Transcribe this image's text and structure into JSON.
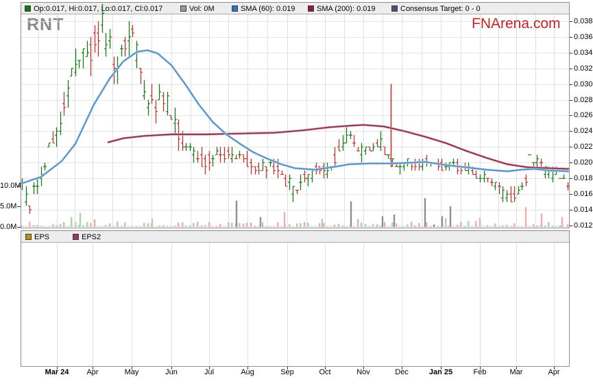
{
  "watermark": "RNT",
  "brand": {
    "text": "FNArena.com"
  },
  "legend_top": {
    "ohlc": {
      "label": "Op:0.017, Hi:0.017, Lo:0.017, Cl:0.017",
      "swatch": "#0E7A0E"
    },
    "vol": {
      "label": "Vol: 0M",
      "swatch": "#9A9A9A"
    },
    "sma60": {
      "label": "SMA (60): 0.019",
      "swatch": "#2E74C8"
    },
    "sma200": {
      "label": "SMA (200): 0.019",
      "swatch": "#8C1C38"
    },
    "consensus": {
      "label": "Consensus Target: 0 - 0",
      "swatch": "#4A5180"
    }
  },
  "legend_eps": {
    "eps": {
      "label": "EPS",
      "swatch": "#B8940A"
    },
    "eps2": {
      "label": "EPS2",
      "swatch": "#9B3568"
    }
  },
  "colors": {
    "up": "#157A15",
    "down": "#C23030",
    "vol_up": "#A9D3A9",
    "vol_down": "#F2AAAA",
    "vol_flat": "#8F8F8F",
    "sma60": "#4E8EC6",
    "sma60_halo": "#B6D2E8",
    "sma200": "#8C2B47",
    "sma200_halo": "#D2A8B4",
    "grid_v": "#DCE0E4",
    "grid_h": "#E4E4E4",
    "border": "#8C8C8C",
    "tick": "#333333",
    "legend_bg": "#EDEDED",
    "legend_border": "#A8A8A8",
    "watermark": "#8A8A8A",
    "brand": "#C32222"
  },
  "chart_data": {
    "type": "candlestick",
    "symbol": "RNT",
    "last_ohlc": {
      "open": 0.017,
      "high": 0.017,
      "low": 0.017,
      "close": 0.017
    },
    "last_volume_m": 0,
    "sma60_last": 0.019,
    "sma200_last": 0.019,
    "consensus_target": "0 - 0",
    "x_axis": {
      "start_x": 30,
      "end_x": 830,
      "labels": [
        {
          "text": "Mar 24",
          "x": 83,
          "bold": true
        },
        {
          "text": "Apr",
          "x": 135
        },
        {
          "text": "May",
          "x": 192
        },
        {
          "text": "Jun",
          "x": 250
        },
        {
          "text": "Jul",
          "x": 305
        },
        {
          "text": "Aug",
          "x": 361
        },
        {
          "text": "Sep",
          "x": 419
        },
        {
          "text": "Oct",
          "x": 474
        },
        {
          "text": "Nov",
          "x": 530
        },
        {
          "text": "Dec",
          "x": 586
        },
        {
          "text": "Jan 25",
          "x": 643,
          "bold": true
        },
        {
          "text": "Feb",
          "x": 700
        },
        {
          "text": "Mar",
          "x": 753
        },
        {
          "text": "Apr",
          "x": 808
        }
      ]
    },
    "y_axis_price": {
      "ticks": [
        0.038,
        0.036,
        0.034,
        0.032,
        0.03,
        0.028,
        0.026,
        0.024,
        0.022,
        0.02,
        0.018,
        0.016,
        0.014,
        0.012
      ],
      "range": [
        0.012,
        0.038
      ]
    },
    "y_axis_volume": {
      "ticks": [
        {
          "label": "10.0M",
          "value": 10
        },
        {
          "label": "5.0M",
          "value": 5
        },
        {
          "label": "0.0M",
          "value": 0
        }
      ]
    },
    "series": {
      "price_trend": [
        [
          0,
          0.017
        ],
        [
          0.012,
          0.0145
        ],
        [
          0.03,
          0.018
        ],
        [
          0.05,
          0.022
        ],
        [
          0.07,
          0.025
        ],
        [
          0.09,
          0.031
        ],
        [
          0.11,
          0.035
        ],
        [
          0.13,
          0.034
        ],
        [
          0.145,
          0.038
        ],
        [
          0.16,
          0.035
        ],
        [
          0.175,
          0.032
        ],
        [
          0.19,
          0.035
        ],
        [
          0.205,
          0.036
        ],
        [
          0.22,
          0.03
        ],
        [
          0.24,
          0.027
        ],
        [
          0.26,
          0.0285
        ],
        [
          0.275,
          0.026
        ],
        [
          0.3,
          0.022
        ],
        [
          0.315,
          0.0215
        ],
        [
          0.33,
          0.02
        ],
        [
          0.345,
          0.0205
        ],
        [
          0.37,
          0.021
        ],
        [
          0.4,
          0.0205
        ],
        [
          0.414,
          0.02
        ],
        [
          0.43,
          0.019
        ],
        [
          0.45,
          0.0195
        ],
        [
          0.47,
          0.019
        ],
        [
          0.486,
          0.0175
        ],
        [
          0.5,
          0.016
        ],
        [
          0.52,
          0.018
        ],
        [
          0.54,
          0.019
        ],
        [
          0.555,
          0.019
        ],
        [
          0.57,
          0.02
        ],
        [
          0.585,
          0.022
        ],
        [
          0.6,
          0.0235
        ],
        [
          0.615,
          0.022
        ],
        [
          0.625,
          0.0215
        ],
        [
          0.64,
          0.022
        ],
        [
          0.655,
          0.0225
        ],
        [
          0.67,
          0.021
        ],
        [
          0.675,
          0.02
        ],
        [
          0.69,
          0.0195
        ],
        [
          0.695,
          0.02
        ],
        [
          0.72,
          0.0195
        ],
        [
          0.74,
          0.02
        ],
        [
          0.766,
          0.0195
        ],
        [
          0.78,
          0.02
        ],
        [
          0.8,
          0.0195
        ],
        [
          0.82,
          0.019
        ],
        [
          0.8375,
          0.018
        ],
        [
          0.85,
          0.0185
        ],
        [
          0.87,
          0.017
        ],
        [
          0.89,
          0.0155
        ],
        [
          0.904,
          0.016
        ],
        [
          0.92,
          0.017
        ],
        [
          0.93,
          0.0205
        ],
        [
          0.945,
          0.02
        ],
        [
          0.96,
          0.019
        ],
        [
          0.972,
          0.0185
        ],
        [
          0.985,
          0.0185
        ],
        [
          1,
          0.017
        ]
      ],
      "bar_amplitude": [
        [
          0,
          0.0015
        ],
        [
          0.05,
          0.002
        ],
        [
          0.09,
          0.0028
        ],
        [
          0.15,
          0.0035
        ],
        [
          0.22,
          0.003
        ],
        [
          0.3,
          0.002
        ],
        [
          0.4,
          0.0012
        ],
        [
          0.5,
          0.0016
        ],
        [
          0.6,
          0.0016
        ],
        [
          0.7,
          0.0011
        ],
        [
          0.8,
          0.001
        ],
        [
          0.9,
          0.0013
        ],
        [
          1,
          0.001
        ]
      ],
      "sma60": [
        [
          30,
          0.0173
        ],
        [
          60,
          0.0182
        ],
        [
          90,
          0.0202
        ],
        [
          110,
          0.0224
        ],
        [
          137,
          0.0274
        ],
        [
          160,
          0.0307
        ],
        [
          180,
          0.0329
        ],
        [
          200,
          0.0341
        ],
        [
          215,
          0.0343
        ],
        [
          230,
          0.0339
        ],
        [
          250,
          0.0324
        ],
        [
          270,
          0.03
        ],
        [
          290,
          0.0274
        ],
        [
          310,
          0.0252
        ],
        [
          330,
          0.0236
        ],
        [
          350,
          0.0224
        ],
        [
          370,
          0.0213
        ],
        [
          390,
          0.0205
        ],
        [
          410,
          0.0198
        ],
        [
          430,
          0.0193
        ],
        [
          460,
          0.0191
        ],
        [
          490,
          0.0195
        ],
        [
          510,
          0.0198
        ],
        [
          540,
          0.0199
        ],
        [
          570,
          0.0199
        ],
        [
          600,
          0.02
        ],
        [
          620,
          0.0201
        ],
        [
          650,
          0.0197
        ],
        [
          680,
          0.0194
        ],
        [
          710,
          0.0191
        ],
        [
          740,
          0.0189
        ],
        [
          760,
          0.0191
        ],
        [
          780,
          0.0192
        ],
        [
          800,
          0.019
        ],
        [
          829,
          0.0189
        ]
      ],
      "sma200": [
        [
          158,
          0.0226
        ],
        [
          180,
          0.0231
        ],
        [
          210,
          0.0234
        ],
        [
          250,
          0.0236
        ],
        [
          300,
          0.0236
        ],
        [
          350,
          0.0237
        ],
        [
          400,
          0.0238
        ],
        [
          440,
          0.0241
        ],
        [
          480,
          0.0245
        ],
        [
          510,
          0.0247
        ],
        [
          530,
          0.0248
        ],
        [
          560,
          0.0246
        ],
        [
          590,
          0.024
        ],
        [
          620,
          0.0233
        ],
        [
          650,
          0.0225
        ],
        [
          680,
          0.0215
        ],
        [
          710,
          0.0206
        ],
        [
          740,
          0.0198
        ],
        [
          770,
          0.0194
        ],
        [
          800,
          0.0193
        ],
        [
          829,
          0.0192
        ]
      ],
      "special_bars": [
        {
          "x": 570,
          "open": 0.0205,
          "high": 0.03,
          "low": 0.0195,
          "close": 0.02,
          "dir": "down"
        }
      ],
      "volume_spikes": [
        [
          117,
          3.4,
          "up"
        ],
        [
          222,
          2.0,
          "up"
        ],
        [
          345,
          6.4,
          "flat"
        ],
        [
          380,
          2.4,
          "flat"
        ],
        [
          415,
          3.6,
          "down"
        ],
        [
          470,
          2.0,
          "up"
        ],
        [
          512,
          6.2,
          "flat"
        ],
        [
          558,
          2.6,
          "flat"
        ],
        [
          575,
          3.0,
          "flat"
        ],
        [
          620,
          7.0,
          "flat"
        ],
        [
          645,
          2.6,
          "flat"
        ],
        [
          657,
          5.0,
          "flat"
        ],
        [
          700,
          2.2,
          "down"
        ],
        [
          767,
          4.8,
          "down"
        ],
        [
          790,
          3.2,
          "down"
        ],
        [
          820,
          2.4,
          "down"
        ]
      ]
    },
    "render": {
      "bar_count": 144,
      "seed": 42424241,
      "quant": 0.0005
    },
    "eps_panel": {
      "series_labels": [
        "EPS",
        "EPS2"
      ],
      "values": []
    }
  }
}
